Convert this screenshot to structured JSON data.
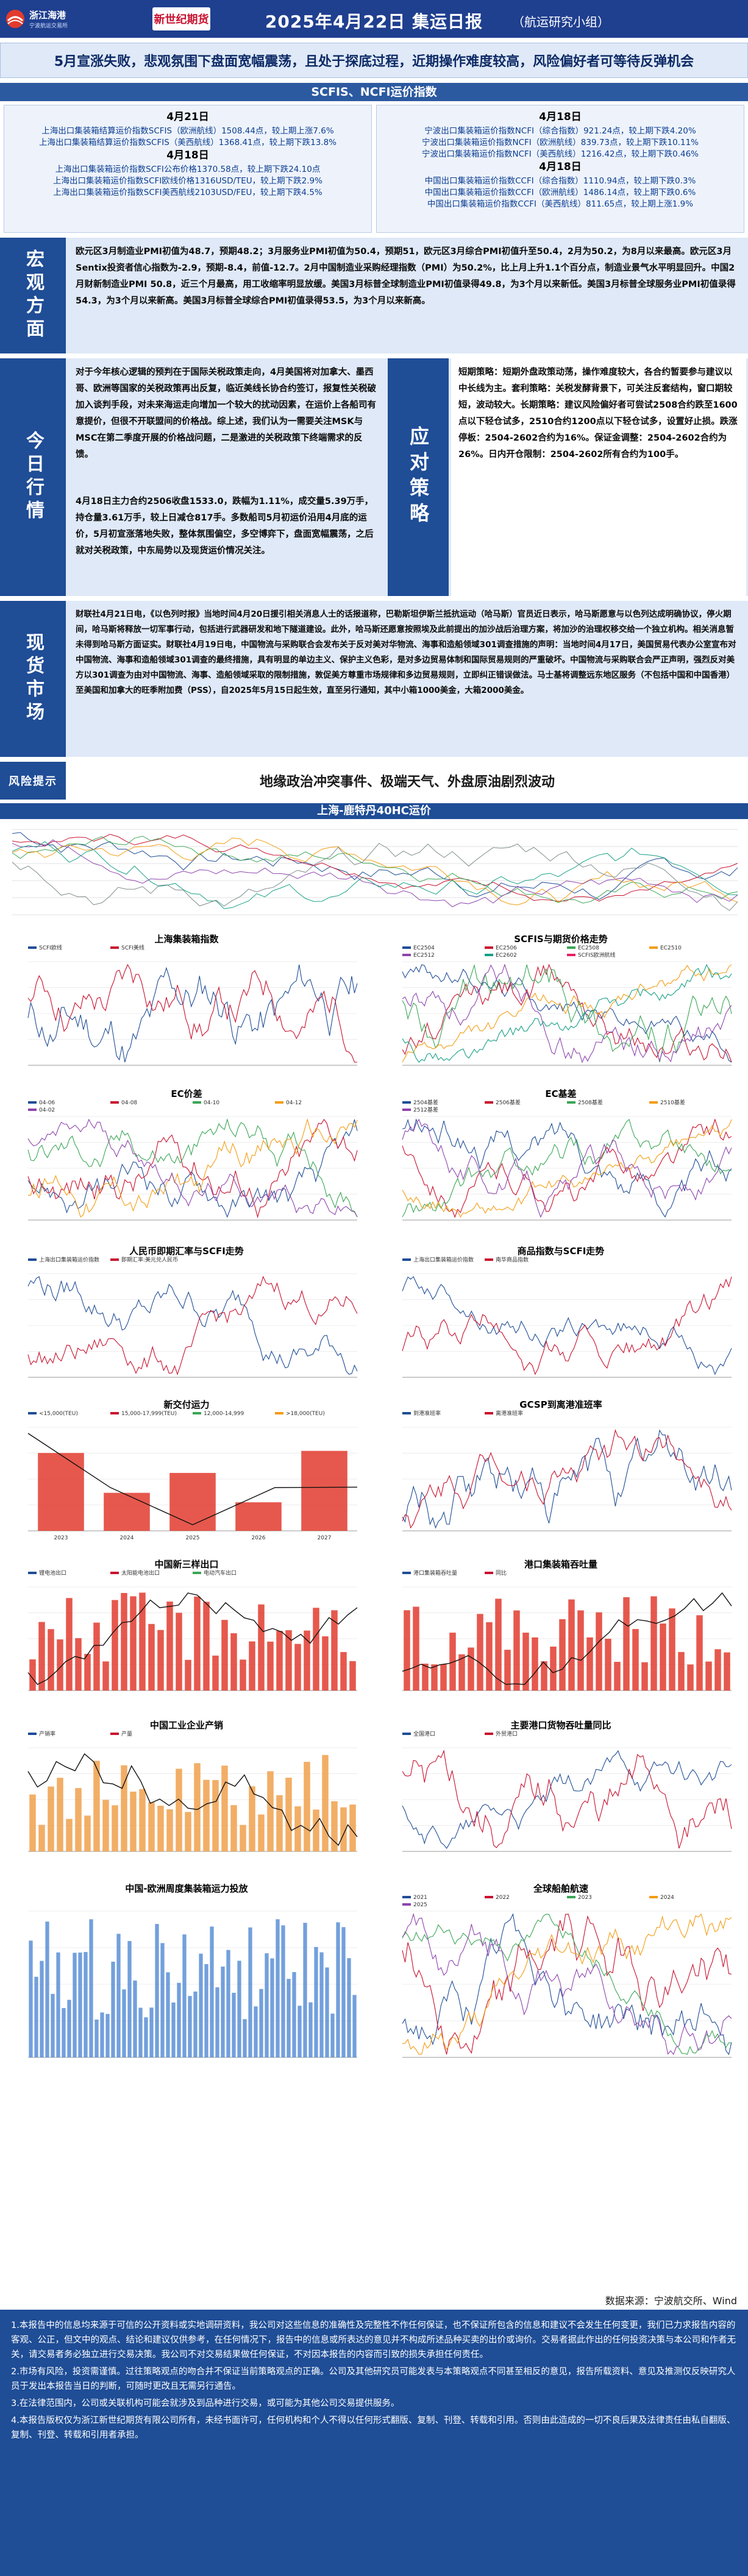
{
  "header": {
    "logo_left_name": "浙江海港",
    "logo_left_sub": "宁波航运交易所",
    "logo_right": "新世纪期货",
    "title": "2025年4月22日 集运日报",
    "subtitle": "（航运研究小组）"
  },
  "banner": "5月宣涨失败，悲观氛围下盘面宽幅震荡，且处于探底过程，近期操作难度较高，风险偏好者可等待反弹机会",
  "index_section": {
    "title": "SCFIS、NCFI运价指数",
    "left": {
      "date1": "4月21日",
      "line1": "上海出口集装箱结算运价指数SCFIS（欧洲航线）1508.44点，较上期上涨7.6%",
      "line2": "上海出口集装箱结算运价指数SCFIS（美西航线）1368.41点，较上期下跌13.8%",
      "date2": "4月18日",
      "line3": "上海出口集装箱运价指数SCFI公布价格1370.58点，较上期下跌24.10点",
      "line4": "上海出口集装箱运价指数SCFI欧线价格1316USD/TEU，较上期下跌2.9%",
      "line5": "上海出口集装箱运价指数SCFI美西航线2103USD/FEU，较上期下跌4.5%"
    },
    "right": {
      "date1": "4月18日",
      "line1": "宁波出口集装箱运价指数NCFI（综合指数）921.24点，较上期下跌4.20%",
      "line2": "宁波出口集装箱运价指数NCFI（欧洲航线）839.73点，较上期下跌10.11%",
      "line3": "宁波出口集装箱运价指数NCFI（美西航线）1216.42点，较上期下跌0.46%",
      "date2": "4月18日",
      "line4": "中国出口集装箱运价指数CCFI（综合指数）1110.94点，较上期下跌0.3%",
      "line5": "中国出口集装箱运价指数CCFI（欧洲航线）1486.14点，较上期下跌0.6%",
      "line6": "中国出口集装箱运价指数CCFI（美西航线）811.65点，较上期上涨1.9%"
    }
  },
  "macro": {
    "label": "宏观方面",
    "text": "欧元区3月制造业PMI初值为48.7，预期48.2；3月服务业PMI初值为50.4，预期51，欧元区3月综合PMI初值升至50.4，2月为50.2，为8月以来最高。欧元区3月Sentix投资者信心指数为-2.9，预期-8.4，前值-12.7。2月中国制造业采购经理指数（PMI）为50.2%，比上月上升1.1个百分点，制造业景气水平明显回升。中国2月财新制造业PMI 50.8，近三个月最高，用工收缩率明显放缓。美国3月标普全球制造业PMI初值录得49.8，为3个月以来新低。美国3月标普全球服务业PMI初值录得54.3，为3个月以来新高。美国3月标普全球综合PMI初值录得53.5，为3个月以来新高。"
  },
  "today": {
    "label": "今日行情",
    "text1": "对于今年核心逻辑的预判在于国际关税政策走向，4月美国将对加拿大、墨西哥、欧洲等国家的关税政策再出反复，临近美线长协合约签订，报复性关税破加入谈判手段，对未来海运走向增加一个较大的扰动因素，在运价上各船司有意提价，但很不开联盟间的价格战。综上述，我们认为一需要关注MSK与MSC在第二季度开展的价格战问题，二是激进的关税政策下终端需求的反馈。",
    "text2": "4月18日主力合约2506收盘1533.0，跌幅为1.11%，成交量5.39万手，持仓量3.61万手，较上日减仓817手。多数船司5月初运价沿用4月底的运价，5月初宣涨落地失败，整体氛围偏空，多空博弈下，盘面宽幅震荡，之后就对关税政策，中东局势以及现货运价情况关注。",
    "strategy_label": "应对策略",
    "strategy_text": "短期策略：短期外盘政策动荡，操作难度较大，各合约暂要参与建议以中长线为主。套利策略：关税发酵背景下，可关注反套结构，窗口期较短，波动较大。长期策略：建议风险偏好者可尝试2508合约跌至1600点以下轻仓试多，2510合约1200点以下轻仓试多，设置好止损。跌涨停板：2504-2602合约为16%。保证金调整：2504-2602合约为26%。日内开仓限制：2504-2602所有合约为100手。"
  },
  "spot": {
    "label": "现货市场",
    "text": "财联社4月21日电，《以色列时报》当地时间4月20日援引相关消息人士的话报道称，巴勒斯坦伊斯兰抵抗运动（哈马斯）官员近日表示，哈马斯愿意与以色列达成明确协议，停火期间，哈马斯将释放一切军事行动，包括进行武器研发和地下隧道建设。此外，哈马斯还愿意按照埃及此前提出的加沙战后治理方案，将加沙的治理权移交给一个独立机构。相关消息暂未得到哈马斯方面证实。财联社4月19日电，中国物流与采购联合会发布关于反对美对华物流、海事和造船领域301调查措施的声明：当地时间4月17日，美国贸易代表办公室宣布对中国物流、海事和造船领域301调查的最终措施，具有明显的单边主义、保护主义色彩，是对多边贸易体制和国际贸易规则的严重破坏。中国物流与采购联合会严正声明，强烈反对美方以301调查为由对中国物流、海事、造船领域采取的限制措施，敦促美方尊重市场规律和多边贸易规则，立即纠正错误做法。马士基将调整远东地区服务（不包括中国和中国香港）至美国和加拿大的旺季附加费（PSS），自2025年5月15日起生效，直至另行通知，其中小箱1000美金，大箱2000美金。"
  },
  "risk": {
    "label": "风险提示",
    "text": "地缘政治冲突事件、极端天气、外盘原油剧烈波动"
  },
  "big_chart": {
    "title": "上海-鹿特丹40HC运价"
  },
  "chart_titles": {
    "c1": "上海集装箱指数",
    "c2": "SCFIS与期货价格走势",
    "c3": "EC价差",
    "c4": "EC基差",
    "c5": "人民币即期汇率与SCFI走势",
    "c6": "商品指数与SCFI走势",
    "c7": "新交付运力",
    "c8": "GCSP到离港准班率",
    "c9": "中国新三样出口",
    "c10": "港口集装箱吞吐量",
    "c11": "中国工业企业产销",
    "c12": "主要港口货物吞吐量同比",
    "c13": "中国-欧洲周度集装箱运力投放",
    "c14": "全球船舶航速"
  },
  "legends": {
    "c1": [
      "SCFI欧线",
      "SCFI美线"
    ],
    "c2": [
      "EC2504",
      "EC2506",
      "EC2508",
      "EC2510",
      "EC2512",
      "EC2602",
      "SCFIS欧洲航线"
    ],
    "c3": [
      "04-06",
      "04-08",
      "04-10",
      "04-12",
      "04-02"
    ],
    "c4": [
      "2504基差",
      "2506基差",
      "2508基差",
      "2510基差",
      "2512基差"
    ],
    "c5": [
      "上海出口集装箱运价指数",
      "即期汇率:美元兑人民币"
    ],
    "c6": [
      "上海出口集装箱运价指数",
      "南华商品指数"
    ],
    "c7": [
      "<15,000(TEU)",
      "15,000-17,999(TEU)",
      "12,000-14,999",
      ">18,000(TEU)"
    ],
    "c8": [
      "到港准班率",
      "离港准班率"
    ],
    "c9": [
      "锂电池出口",
      "太阳能电池出口",
      "电动汽车出口"
    ],
    "c10": [
      "港口集装箱吞吐量",
      "同比"
    ],
    "c11": [
      "产销率",
      "产量"
    ],
    "c12": [
      "全国港口",
      "外贸港口"
    ],
    "c14": [
      "2021",
      "2022",
      "2023",
      "2024",
      "2025"
    ]
  },
  "c7_years": [
    "2023",
    "2024",
    "2025",
    "2026",
    "2027"
  ],
  "source": "数据来源：宁波航交所、Wind",
  "disclaimer": [
    "1.本报告中的信息均来源于可信的公开资料或实地调研资料，我公司对这些信息的准确性及完整性不作任何保证，也不保证所包含的信息和建议不会发生任何变更，我们已力求报告内容的客观、公正，但文中的观点、结论和建议仅供参考，在任何情况下，报告中的信息或所表达的意见并不构成所述品种买卖的出价或询价。交易者据此作出的任何投资决策与本公司和作者无关，请交易者务必独立进行交易决策。我公司不对交易结果做任何保证，不对因本报告的内容而引致的损失承担任何责任。",
    "2.市场有风险，投资需谨慎。过往策略观点的吻合并不保证当前策略观点的正确。公司及其他研究员可能发表与本策略观点不同甚至相反的意见，报告所载资料、意见及推测仅反映研究人员于发出本报告当日的判断，可随时更改且无需另行通告。",
    "3.在法律范围内，公司或关联机构可能会就涉及到品种进行交易，或可能为其他公司交易提供服务。",
    "4.本报告版权仅为浙江新世纪期货有限公司所有，未经书面许可，任何机构和个人不得以任何形式翻版、复制、刊登、转载和引用。否则由此造成的一切不良后果及法律责任由私自翻版、复制、刊登、转载和引用者承担。"
  ],
  "colors": {
    "brand": "#1f4d96",
    "header": "#1f3f8f",
    "light": "#dfe9f7"
  }
}
